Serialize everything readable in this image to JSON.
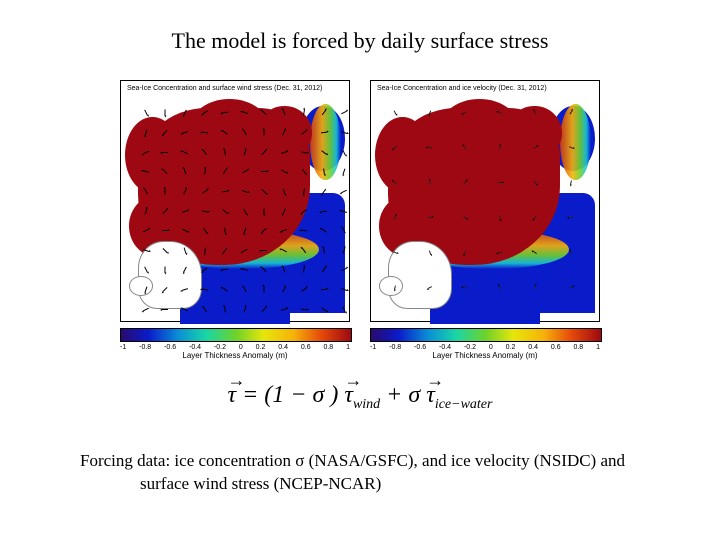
{
  "title": "The model is forced by daily surface stress",
  "panels": {
    "left": {
      "title": "Sea-Ice Concentration and surface wind stress (Dec. 31, 2012)",
      "colorbar_label": "Layer Thickness Anomaly (m)",
      "ticks": [
        "-1",
        "-0.8",
        "-0.6",
        "-0.4",
        "-0.2",
        "0",
        "0.2",
        "0.4",
        "0.6",
        "0.8",
        "1"
      ]
    },
    "right": {
      "title": "Sea-Ice Concentration and ice velocity (Dec. 31, 2012)",
      "colorbar_label": "Layer Thickness Anomaly (m)",
      "ticks": [
        "-1",
        "-0.8",
        "-0.6",
        "-0.4",
        "-0.2",
        "0",
        "0.2",
        "0.4",
        "0.6",
        "0.8",
        "1"
      ]
    }
  },
  "colors": {
    "ice": "#9e0812",
    "ocean": "#0a1bca",
    "land": "#ffffff",
    "background": "#ffffff",
    "palette": [
      "#2a0a6e",
      "#0a1bca",
      "#0a8fd6",
      "#18d6a6",
      "#6fd22a",
      "#e6e60a",
      "#f6b20a",
      "#e64a0a",
      "#9e0812"
    ]
  },
  "equation": {
    "lhs": "τ",
    "eq": " = (1 − ",
    "sigma": "σ",
    "mid": ")",
    "tau_wind": "τ",
    "wind_sub": "wind",
    "plus": " + ",
    "sigma2": "σ",
    "tau_ice": "τ",
    "ice_sub": "ice−water"
  },
  "caption_line1": "Forcing data: ice concentration σ (NASA/GSFC), and ice velocity (NSIDC) and",
  "caption_line2": "surface wind stress (NCEP-NCAR)"
}
